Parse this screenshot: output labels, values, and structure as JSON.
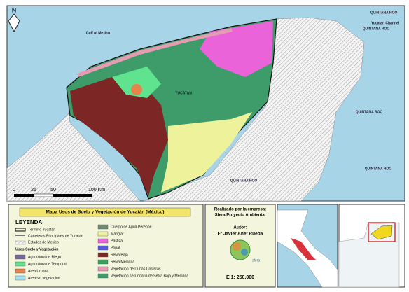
{
  "map": {
    "north": "N",
    "labels": {
      "gulf": "Gulf of Mexico",
      "channel": "Yucatan Channel",
      "state": "YUCATAN",
      "quintana_roo": [
        "QUINTANA ROO",
        "QUINTANA ROO",
        "QUINTANA ROO",
        "QUINTANA ROO",
        "QUINTANA ROO"
      ]
    },
    "scale_bar": [
      "0",
      "25",
      "50",
      "100 Km"
    ]
  },
  "legend": {
    "title": "Mapa Usos de Suelo y Vegetación de Yucatán (México)",
    "heading": "LEYENDA",
    "reference": [
      "Término Yucatán",
      "Carreteras Principales de Yucatan",
      "Estados de Mexico"
    ],
    "subheading": "Usos Suelo y Vegetación",
    "items": [
      {
        "label": "Agricultura de Riego",
        "color": "#77679a"
      },
      {
        "label": "Agricultura de Temporal",
        "color": "#5fe38e"
      },
      {
        "label": "Area Urbana",
        "color": "#e5844c"
      },
      {
        "label": "Area sin vegetacion",
        "color": "#a3dff5"
      },
      {
        "label": "Cuerpo de Agua Perenne",
        "color": "#6f8b6f"
      },
      {
        "label": "Manglar",
        "color": "#eef29a"
      },
      {
        "label": "Pastizal",
        "color": "#ea63d9"
      },
      {
        "label": "Popal",
        "color": "#5757e3"
      },
      {
        "label": "Selva Baja",
        "color": "#7c2626"
      },
      {
        "label": "Selva Mediana",
        "color": "#3b9f60"
      },
      {
        "label": "Vegetacion de Dunas Costeras",
        "color": "#e49cb2"
      },
      {
        "label": "Vegetacion secundaria de Selva Baja y Mediana",
        "color": "#3e9c6b"
      }
    ]
  },
  "credits": {
    "company_intro": "Realizado por la empresa:",
    "company": "Sfera Proyecto Ambiental",
    "author_heading": "Autor:",
    "author": "Fº Javier Anet Rueda",
    "logo_text": "sfera",
    "scale": "E 1: 250.000"
  }
}
